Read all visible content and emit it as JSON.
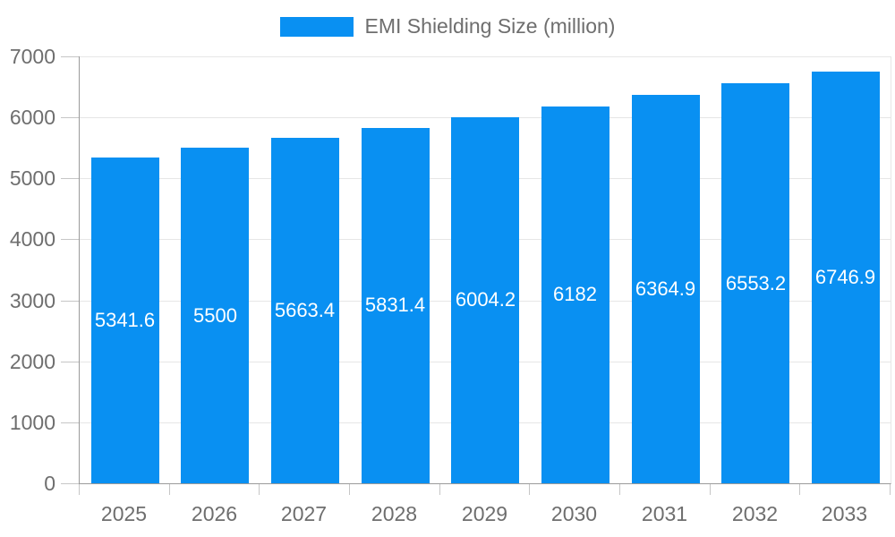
{
  "legend": {
    "label": "EMI Shielding Size (million)"
  },
  "colors": {
    "bar": "#0990f2",
    "axis": "#9a9a9a",
    "gridline": "#e6e6e6",
    "tick": "#c6c6c6",
    "label_text": "#6e6e6e",
    "bar_label": "#ffffff",
    "background": "#ffffff"
  },
  "chart_data": {
    "type": "bar",
    "title": "",
    "series_name": "EMI Shielding Size (million)",
    "categories": [
      "2025",
      "2026",
      "2027",
      "2028",
      "2029",
      "2030",
      "2031",
      "2032",
      "2033"
    ],
    "values": [
      5341.6,
      5500,
      5663.4,
      5831.4,
      6004.2,
      6182,
      6364.9,
      6553.2,
      6746.9
    ],
    "bar_value_labels": [
      "5341.6",
      "5500",
      "5663.4",
      "5831.4",
      "6004.2",
      "6182",
      "6364.9",
      "6553.2",
      "6746.9"
    ],
    "xlabel": "",
    "ylabel": "",
    "ylim": [
      0,
      7000
    ],
    "y_ticks": [
      0,
      1000,
      2000,
      3000,
      4000,
      5000,
      6000,
      7000
    ],
    "grid": true,
    "legend_position": "top-center",
    "bar_labels_position": "inside-center"
  }
}
